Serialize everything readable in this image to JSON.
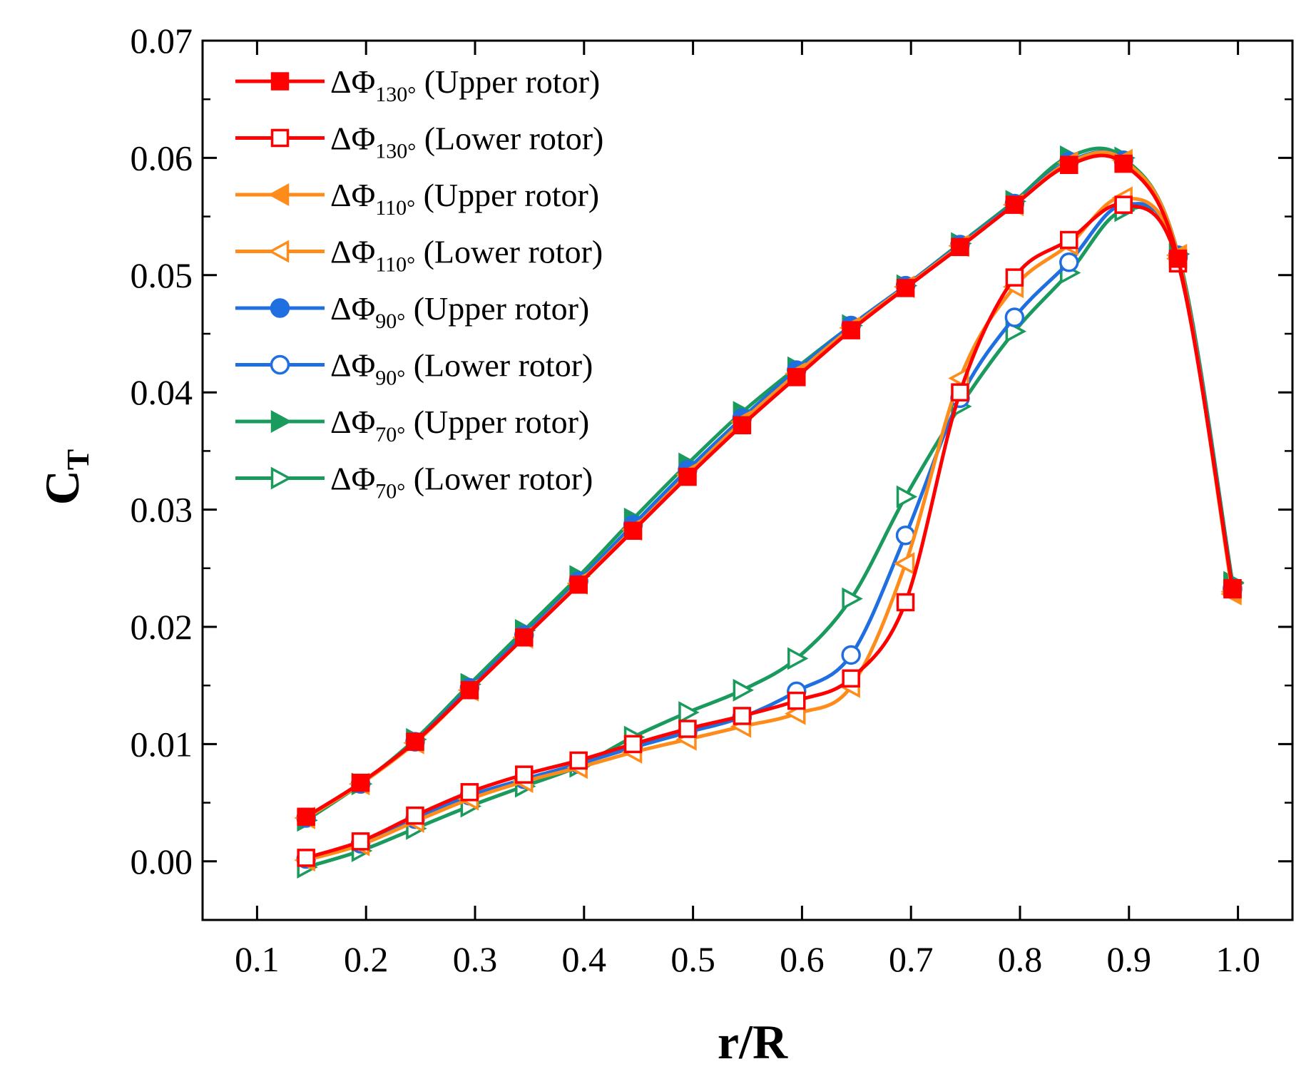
{
  "chart_data": {
    "type": "line",
    "title": "",
    "xlabel": "r/R",
    "ylabel_main": "C",
    "ylabel_sub": "T",
    "xlim": [
      0.05,
      1.05
    ],
    "ylim": [
      -0.005,
      0.07
    ],
    "xticks": [
      0.1,
      0.2,
      0.3,
      0.4,
      0.5,
      0.6,
      0.7,
      0.8,
      0.9,
      1.0
    ],
    "xtick_labels": [
      "0.1",
      "0.2",
      "0.3",
      "0.4",
      "0.5",
      "0.6",
      "0.7",
      "0.8",
      "0.9",
      "1.0"
    ],
    "yticks": [
      0.0,
      0.01,
      0.02,
      0.03,
      0.04,
      0.05,
      0.06,
      0.07
    ],
    "ytick_labels": [
      "0.00",
      "0.01",
      "0.02",
      "0.03",
      "0.04",
      "0.05",
      "0.06",
      "0.07"
    ],
    "legend_position": "top-left",
    "series": [
      {
        "name_prefix": "ΔΦ",
        "name_sub": "130°",
        "name_suffix": "(Upper rotor)",
        "color": "#ff0000",
        "marker": "square-filled",
        "x": [
          0.145,
          0.195,
          0.245,
          0.295,
          0.345,
          0.395,
          0.445,
          0.495,
          0.545,
          0.595,
          0.645,
          0.695,
          0.745,
          0.795,
          0.845,
          0.895,
          0.945,
          0.995
        ],
        "y": [
          0.0038,
          0.0067,
          0.0102,
          0.0146,
          0.0191,
          0.0236,
          0.0282,
          0.0328,
          0.0372,
          0.0413,
          0.0453,
          0.0489,
          0.0524,
          0.056,
          0.0594,
          0.0595,
          0.0514,
          0.0232
        ]
      },
      {
        "name_prefix": "ΔΦ",
        "name_sub": "130°",
        "name_suffix": "(Lower rotor)",
        "color": "#ff0000",
        "marker": "square-open",
        "x": [
          0.145,
          0.195,
          0.245,
          0.295,
          0.345,
          0.395,
          0.445,
          0.495,
          0.545,
          0.595,
          0.645,
          0.695,
          0.745,
          0.795,
          0.845,
          0.895,
          0.945,
          0.995
        ],
        "y": [
          0.0003,
          0.0017,
          0.0039,
          0.0059,
          0.0074,
          0.0086,
          0.01,
          0.0113,
          0.0124,
          0.0137,
          0.0156,
          0.0221,
          0.04,
          0.0498,
          0.053,
          0.056,
          0.051,
          0.0233
        ]
      },
      {
        "name_prefix": "ΔΦ",
        "name_sub": "110°",
        "name_suffix": "(Upper rotor)",
        "color": "#ff8c1a",
        "marker": "triangle-left-filled",
        "x": [
          0.145,
          0.195,
          0.245,
          0.295,
          0.345,
          0.395,
          0.445,
          0.495,
          0.545,
          0.595,
          0.645,
          0.695,
          0.745,
          0.795,
          0.845,
          0.895,
          0.945,
          0.995
        ],
        "y": [
          0.0037,
          0.0066,
          0.0101,
          0.0146,
          0.0191,
          0.0237,
          0.0283,
          0.033,
          0.0375,
          0.0416,
          0.0455,
          0.049,
          0.0525,
          0.056,
          0.0596,
          0.0598,
          0.0517,
          0.0228
        ]
      },
      {
        "name_prefix": "ΔΦ",
        "name_sub": "110°",
        "name_suffix": "(Lower rotor)",
        "color": "#ff8c1a",
        "marker": "triangle-left-open",
        "x": [
          0.145,
          0.195,
          0.245,
          0.295,
          0.345,
          0.395,
          0.445,
          0.495,
          0.545,
          0.595,
          0.645,
          0.695,
          0.745,
          0.795,
          0.845,
          0.895,
          0.945,
          0.995
        ],
        "y": [
          0.0001,
          0.0014,
          0.0034,
          0.0053,
          0.0068,
          0.008,
          0.0093,
          0.0104,
          0.0115,
          0.0126,
          0.0149,
          0.0254,
          0.0412,
          0.049,
          0.0526,
          0.0566,
          0.0514,
          0.023
        ]
      },
      {
        "name_prefix": "ΔΦ",
        "name_sub": "90°",
        "name_suffix": "(Upper rotor)",
        "color": "#1f6fe0",
        "marker": "circle-filled",
        "x": [
          0.145,
          0.195,
          0.245,
          0.295,
          0.345,
          0.395,
          0.445,
          0.495,
          0.545,
          0.595,
          0.645,
          0.695,
          0.745,
          0.795,
          0.845,
          0.895,
          0.945,
          0.995
        ],
        "y": [
          0.0037,
          0.0066,
          0.0102,
          0.0148,
          0.0193,
          0.0239,
          0.0287,
          0.0334,
          0.0378,
          0.0419,
          0.0457,
          0.0491,
          0.0526,
          0.0561,
          0.0597,
          0.0598,
          0.0517,
          0.0233
        ]
      },
      {
        "name_prefix": "ΔΦ",
        "name_sub": "90°",
        "name_suffix": "(Lower rotor)",
        "color": "#1f6fe0",
        "marker": "circle-open",
        "x": [
          0.145,
          0.195,
          0.245,
          0.295,
          0.345,
          0.395,
          0.445,
          0.495,
          0.545,
          0.595,
          0.645,
          0.695,
          0.745,
          0.795,
          0.845,
          0.895,
          0.945,
          0.995
        ],
        "y": [
          0.0002,
          0.0015,
          0.0036,
          0.0056,
          0.007,
          0.0083,
          0.0097,
          0.011,
          0.0123,
          0.0145,
          0.0176,
          0.0278,
          0.0395,
          0.0464,
          0.0511,
          0.056,
          0.0515,
          0.0232
        ]
      },
      {
        "name_prefix": "ΔΦ",
        "name_sub": "70°",
        "name_suffix": "(Upper rotor)",
        "color": "#1a9a5c",
        "marker": "triangle-right-filled",
        "x": [
          0.145,
          0.195,
          0.245,
          0.295,
          0.345,
          0.395,
          0.445,
          0.495,
          0.545,
          0.595,
          0.645,
          0.695,
          0.745,
          0.795,
          0.845,
          0.895,
          0.945,
          0.995
        ],
        "y": [
          0.0035,
          0.0066,
          0.0104,
          0.0151,
          0.0197,
          0.0243,
          0.0292,
          0.0339,
          0.0383,
          0.0421,
          0.0457,
          0.0491,
          0.0527,
          0.0563,
          0.0601,
          0.06,
          0.0518,
          0.0238
        ]
      },
      {
        "name_prefix": "ΔΦ",
        "name_sub": "70°",
        "name_suffix": "(Lower rotor)",
        "color": "#1a9a5c",
        "marker": "triangle-right-open",
        "x": [
          0.145,
          0.195,
          0.245,
          0.295,
          0.345,
          0.395,
          0.445,
          0.495,
          0.545,
          0.595,
          0.645,
          0.695,
          0.745,
          0.795,
          0.845,
          0.895,
          0.945,
          0.995
        ],
        "y": [
          -0.0005,
          0.0009,
          0.0028,
          0.0047,
          0.0064,
          0.0081,
          0.0106,
          0.0127,
          0.0146,
          0.0173,
          0.0224,
          0.0311,
          0.0388,
          0.0452,
          0.0502,
          0.0555,
          0.0518,
          0.0237
        ]
      }
    ]
  }
}
